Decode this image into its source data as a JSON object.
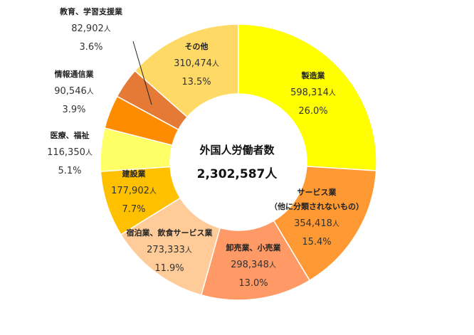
{
  "chart_data": {
    "type": "pie",
    "donut": true,
    "center": {
      "title": "外国人労働者数",
      "total": "2,302,587人"
    },
    "unit": "人",
    "slices": [
      {
        "category": "製造業",
        "value": 598314,
        "value_label": "598,314",
        "percent": 26.0,
        "percent_label": "26.0%",
        "color": "#FFFF00"
      },
      {
        "category": "サービス業\n（他に分類されないもの）",
        "value": 354418,
        "value_label": "354,418",
        "percent": 15.4,
        "percent_label": "15.4%",
        "color": "#FF9933"
      },
      {
        "category": "卸売業、小売業",
        "value": 298348,
        "value_label": "298,348",
        "percent": 13.0,
        "percent_label": "13.0%",
        "color": "#FF9966"
      },
      {
        "category": "宿泊業、飲食サービス業",
        "value": 273333,
        "value_label": "273,333",
        "percent": 11.9,
        "percent_label": "11.9%",
        "color": "#FFCC99"
      },
      {
        "category": "建設業",
        "value": 177902,
        "value_label": "177,902",
        "percent": 7.7,
        "percent_label": "7.7%",
        "color": "#FFC000"
      },
      {
        "category": "医療、福祉",
        "value": 116350,
        "value_label": "116,350",
        "percent": 5.1,
        "percent_label": "5.1%",
        "color": "#FFFF66"
      },
      {
        "category": "情報通信業",
        "value": 90546,
        "value_label": "90,546",
        "percent": 3.9,
        "percent_label": "3.9%",
        "color": "#FF8C00"
      },
      {
        "category": "教育、学習支援業",
        "value": 82902,
        "value_label": "82,902",
        "percent": 3.6,
        "percent_label": "3.6%",
        "color": "#E47A35"
      },
      {
        "category": "その他",
        "value": 310474,
        "value_label": "310,474",
        "percent": 13.5,
        "percent_label": "13.5%",
        "color": "#FFD966"
      }
    ]
  }
}
